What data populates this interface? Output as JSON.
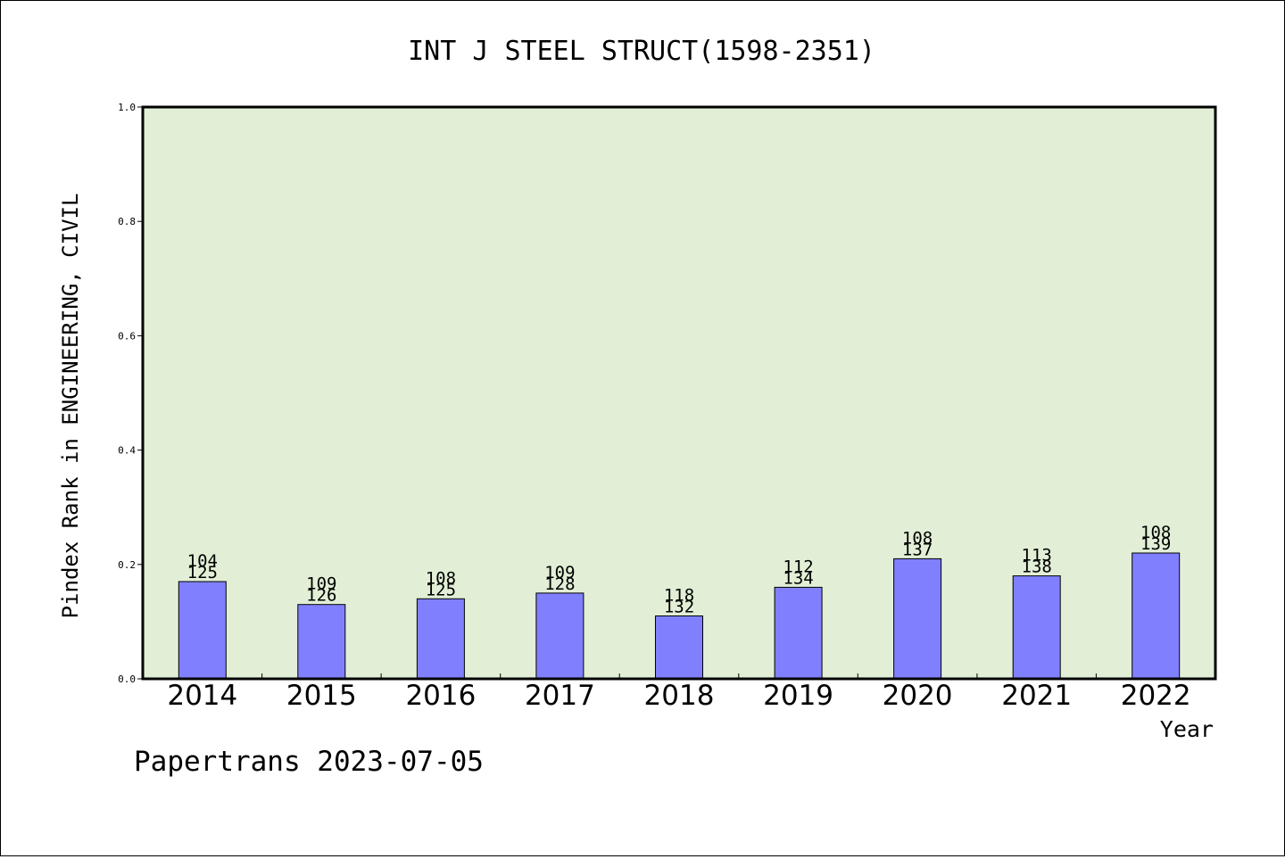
{
  "footer_text": "Papertrans 2023-07-05",
  "chart_data": {
    "type": "bar",
    "title": "INT J STEEL STRUCT(1598-2351)",
    "xlabel": "Year",
    "ylabel": "Pindex Rank in ENGINEERING, CIVIL",
    "categories": [
      "2014",
      "2015",
      "2016",
      "2017",
      "2018",
      "2019",
      "2020",
      "2021",
      "2022"
    ],
    "values": [
      0.17,
      0.13,
      0.14,
      0.15,
      0.11,
      0.16,
      0.21,
      0.18,
      0.22
    ],
    "rank_labels": [
      "104",
      "109",
      "108",
      "109",
      "118",
      "112",
      "108",
      "113",
      "108"
    ],
    "total_labels": [
      "125",
      "126",
      "125",
      "128",
      "132",
      "134",
      "137",
      "138",
      "139"
    ],
    "ylim": [
      0.0,
      1.0
    ],
    "yticks": [
      "0.0",
      "0.2",
      "0.4",
      "0.6",
      "0.8",
      "1.0"
    ],
    "grid": false,
    "colors": {
      "plot_background": "#e2efd6",
      "bar_fill": "#8080ff",
      "bar_stroke": "#000000"
    }
  }
}
